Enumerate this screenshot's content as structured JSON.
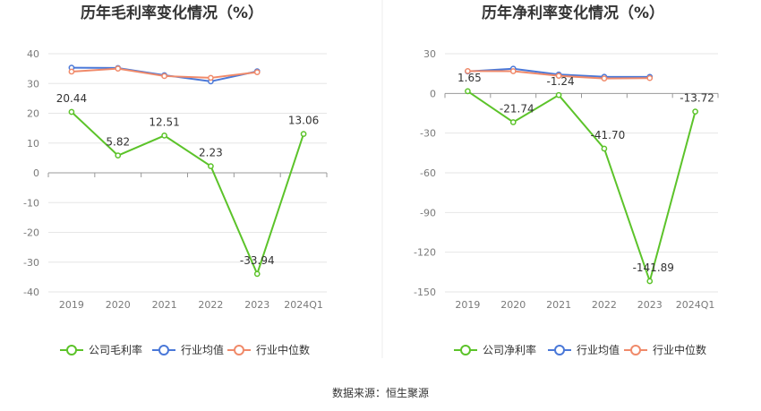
{
  "charts": [
    {
      "title": "历年毛利率变化情况（%）",
      "chart_data": {
        "type": "line",
        "categories": [
          "2019",
          "2020",
          "2021",
          "2022",
          "2023",
          "2024Q1"
        ],
        "ylim": [
          -40,
          40
        ],
        "yticks": [
          40,
          30,
          20,
          10,
          0,
          -10,
          -20,
          -30,
          -40
        ],
        "grid": true,
        "legend_placement": "bottom",
        "series": [
          {
            "name": "公司毛利率",
            "color": "#5cc32a",
            "values": [
              20.44,
              5.82,
              12.51,
              2.23,
              -33.94,
              13.06
            ],
            "labels": [
              "20.44",
              "5.82",
              "12.51",
              "2.23",
              "-33.94",
              "13.06"
            ]
          },
          {
            "name": "行业均值",
            "color": "#4a78d8",
            "values": [
              35.3,
              35.2,
              32.8,
              30.7,
              34.1,
              null
            ]
          },
          {
            "name": "行业中位数",
            "color": "#f08a6a",
            "values": [
              34.0,
              35.0,
              32.5,
              31.9,
              33.8,
              null
            ]
          }
        ]
      }
    },
    {
      "title": "历年净利率变化情况（%）",
      "chart_data": {
        "type": "line",
        "categories": [
          "2019",
          "2020",
          "2021",
          "2022",
          "2023",
          "2024Q1"
        ],
        "ylim": [
          -150,
          30
        ],
        "yticks": [
          30,
          0,
          -30,
          -60,
          -90,
          -120,
          -150
        ],
        "grid": true,
        "legend_placement": "bottom",
        "series": [
          {
            "name": "公司净利率",
            "color": "#5cc32a",
            "values": [
              1.65,
              -21.74,
              -1.24,
              -41.7,
              -141.89,
              -13.72
            ],
            "labels": [
              "1.65",
              "-21.74",
              "-1.24",
              "-41.70",
              "-141.89",
              "-13.72"
            ]
          },
          {
            "name": "行业均值",
            "color": "#4a78d8",
            "values": [
              16.6,
              18.7,
              14.3,
              12.6,
              12.5,
              null
            ]
          },
          {
            "name": "行业中位数",
            "color": "#f08a6a",
            "values": [
              16.9,
              16.8,
              13.3,
              11.3,
              11.6,
              null
            ]
          }
        ]
      }
    }
  ],
  "source": "数据来源：恒生聚源"
}
